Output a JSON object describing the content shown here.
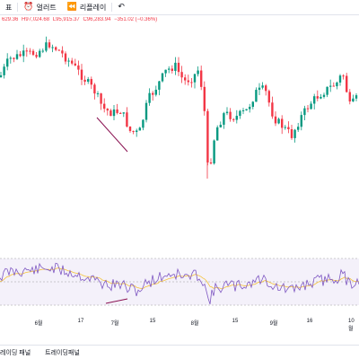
{
  "toolbar": {
    "menu_label": "표",
    "alert_label": "얼러트",
    "replay_label": "리플레이",
    "alert_icon": "alarm-clock-icon",
    "replay_icon": "rewind-icon",
    "undo_icon": "undo-icon"
  },
  "ohlc": {
    "o": "629.36",
    "h": "H97,024.68",
    "l": "L95,915.37",
    "c": "C96,283.94",
    "change": "−351.02 (−0.36%)"
  },
  "colors": {
    "up": "#089981",
    "down": "#f23645",
    "rsi_line": "#7e57c2",
    "rsi_ma": "#f5c33b",
    "divergence": "#880e4f"
  },
  "x_axis_labels": [
    "6월",
    "17",
    "7월",
    "15",
    "8월",
    "15",
    "9월",
    "16",
    "10월"
  ],
  "bottom_tabs": [
    "레이딩 패널",
    "트레이딩패널"
  ]
}
